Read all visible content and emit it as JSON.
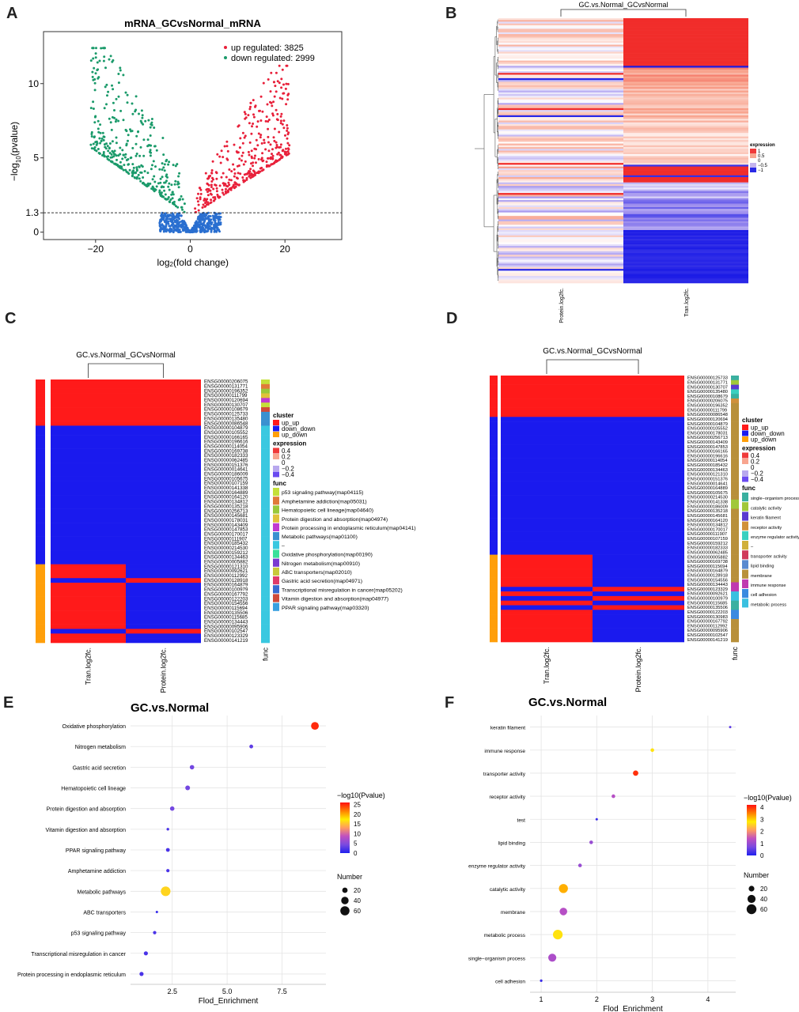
{
  "panel_letters": [
    "A",
    "B",
    "C",
    "D",
    "E",
    "F"
  ],
  "chart_data": [
    {
      "panel": "A",
      "type": "scatter",
      "title": "mRNA_GCvsNormal_mRNA",
      "xlabel": "log2(fold change)",
      "xlabel_main": "log",
      "xlabel_sub": "2",
      "xlabel_rest": "(fold change)",
      "ylabel_pre": "−log",
      "ylabel_sub": "10",
      "ylabel_rest": "(pvalue)",
      "xticks": [
        -20,
        0,
        20
      ],
      "yticks": [
        0,
        1.3,
        5,
        10
      ],
      "xlim": [
        -31,
        32
      ],
      "ylim": [
        -0.5,
        13.5
      ],
      "threshold": 1.3,
      "legend": [
        {
          "label": "up regulated: 3825",
          "color": "#e8203a"
        },
        {
          "label": "down regulated: 2999",
          "color": "#1a9a6a"
        }
      ],
      "colors": {
        "up": "#e8203a",
        "down": "#1a9a6a",
        "ns": "#2a6fd0"
      }
    },
    {
      "panel": "B",
      "type": "heatmap",
      "title": "GC.vs.Normal_GCvsNormal",
      "columns": [
        "Protein.log2fc.",
        "Tran.log2fc."
      ],
      "legend_title": "expression",
      "legend_labels": [
        "1",
        "0.5",
        "0",
        "−0.5",
        "−1"
      ],
      "legend_colors": [
        "#f03a3a",
        "#f8a58f",
        "#ffffff",
        "#c4b4ee",
        "#2a2ae6"
      ],
      "scale": [
        -1,
        1
      ]
    },
    {
      "panel": "C",
      "type": "heatmap",
      "title": "GC.vs.Normal_GCvsNormal",
      "columns": [
        "Tran.log2fc.",
        "Protein.log2fc."
      ],
      "func_label": "func",
      "genes": [
        "ENSG00000206075",
        "ENSG00000131771",
        "ENSG00000196352",
        "ENSG00000111799",
        "ENSG00000120694",
        "ENSG00000130707",
        "ENSG00000108679",
        "ENSG00000125733",
        "ENSG00000135480",
        "ENSG00000086548",
        "ENSG00000104879",
        "ENSG00000105552",
        "ENSG00000166165",
        "ENSG00000196616",
        "ENSG00000114054",
        "ENSG00000169738",
        "ENSG00000182333",
        "ENSG00000062485",
        "ENSG00000151376",
        "ENSG00000014641",
        "ENSG00000186009",
        "ENSG00000105675",
        "ENSG00000107159",
        "ENSG00000141338",
        "ENSG00000164889",
        "ENSG00000164120",
        "ENSG00000134812",
        "ENSG00000135218",
        "ENSG00000256713",
        "ENSG00000145681",
        "ENSG00000178031",
        "ENSG00000143409",
        "ENSG00000147853",
        "ENSG00000170017",
        "ENSG00000111907",
        "ENSG00000185432",
        "ENSG00000214530",
        "ENSG00000159212",
        "ENSG00000134463",
        "ENSG00000005882",
        "ENSG00000121310",
        "ENSG00000092621",
        "ENSG00000112992",
        "ENSG00000128918",
        "ENSG00000164879",
        "ENSG00000100979",
        "ENSG00000167792",
        "ENSG00000122203",
        "ENSG00000154556",
        "ENSG00000115694",
        "ENSG00000135506",
        "ENSG00000115685",
        "ENSG00000134443",
        "ENSG00000095906",
        "ENSG00000102547",
        "ENSG00000123329",
        "ENSG00000141219"
      ],
      "cluster_title": "cluster",
      "clusters": [
        {
          "label": "up_up",
          "color": "#ff1a1a"
        },
        {
          "label": "down_down",
          "color": "#1a1aee"
        },
        {
          "label": "up_down",
          "color": "#ff9f0a"
        }
      ],
      "expression_title": "expression",
      "expression_legend": [
        {
          "label": "0.4",
          "color": "#f03a3a"
        },
        {
          "label": "0.2",
          "color": "#f8a58f"
        },
        {
          "label": "0",
          "color": "#ffffff"
        },
        {
          "label": "−0.2",
          "color": "#b8a8ee"
        },
        {
          "label": "−0.4",
          "color": "#6a4af0"
        }
      ],
      "func_title": "func",
      "funcs": [
        {
          "label": "p53 signaling pathway(map04115)",
          "color": "#c5e03a"
        },
        {
          "label": "Amphetamine addiction(map05031)",
          "color": "#e07a3a"
        },
        {
          "label": "Hematopoietic cell lineage(map04640)",
          "color": "#9ac83a"
        },
        {
          "label": "Protein digestion and absorption(map04974)",
          "color": "#e0c23a"
        },
        {
          "label": "Protein processing in endoplasmic reticulum(map04141)",
          "color": "#c03ad0"
        },
        {
          "label": "Metabolic pathways(map01100)",
          "color": "#3a90d0"
        },
        {
          "label": "–",
          "color": "#3ac8e0"
        },
        {
          "label": "Oxidative phosphorylation(map00190)",
          "color": "#3ae09a"
        },
        {
          "label": "Nitrogen metabolism(map00910)",
          "color": "#7a3ad0"
        },
        {
          "label": "ABC transporters(map02010)",
          "color": "#c8c83a"
        },
        {
          "label": "Gastric acid secretion(map04971)",
          "color": "#e03a6a"
        },
        {
          "label": "Transcriptional misregulation in cancer(map05202)",
          "color": "#3a6ad0"
        },
        {
          "label": "Vitamin digestion and absorption(map04977)",
          "color": "#d04a3a"
        },
        {
          "label": "PPAR signaling pathway(map03320)",
          "color": "#3aa0e0"
        }
      ]
    },
    {
      "panel": "D",
      "type": "heatmap",
      "title": "GC.vs.Normal_GCvsNormal",
      "columns": [
        "Tran.log2fc.",
        "Protein.log2fc."
      ],
      "func_label": "func",
      "genes": [
        "ENSG00000125733",
        "ENSG00000131771",
        "ENSG00000130707",
        "ENSG00000135480",
        "ENSG00000108679",
        "ENSG00000206075",
        "ENSG00000196352",
        "ENSG00000111799",
        "ENSG00000086548",
        "ENSG00000120694",
        "ENSG00000104879",
        "ENSG00000105552",
        "ENSG00000178031",
        "ENSG00000256713",
        "ENSG00000143409",
        "ENSG00000147853",
        "ENSG00000166165",
        "ENSG00000196616",
        "ENSG00000114054",
        "ENSG00000185432",
        "ENSG00000134463",
        "ENSG00000121310",
        "ENSG00000151376",
        "ENSG00000014641",
        "ENSG00000164889",
        "ENSG00000105675",
        "ENSG00000214530",
        "ENSG00000141338",
        "ENSG00000186009",
        "ENSG00000135218",
        "ENSG00000145681",
        "ENSG00000164120",
        "ENSG00000134812",
        "ENSG00000170017",
        "ENSG00000111907",
        "ENSG00000107159",
        "ENSG00000159212",
        "ENSG00000182333",
        "ENSG00000062485",
        "ENSG00000005882",
        "ENSG00000169738",
        "ENSG00000115694",
        "ENSG00000164879",
        "ENSG00000128918",
        "ENSG00000154556",
        "ENSG00000134443",
        "ENSG00000123329",
        "ENSG00000092621",
        "ENSG00000100979",
        "ENSG00000115685",
        "ENSG00000135506",
        "ENSG00000122203",
        "ENSG00000130983",
        "ENSG00000167792",
        "ENSG00000112992",
        "ENSG00000095906",
        "ENSG00000102547",
        "ENSG00000141219"
      ],
      "cluster_title": "cluster",
      "clusters": [
        {
          "label": "up_up",
          "color": "#ff1a1a"
        },
        {
          "label": "down_down",
          "color": "#1a1aee"
        },
        {
          "label": "up_down",
          "color": "#ff9f0a"
        }
      ],
      "expression_title": "expression",
      "expression_legend": [
        {
          "label": "0.4",
          "color": "#f03a3a"
        },
        {
          "label": "0.2",
          "color": "#f8a58f"
        },
        {
          "label": "0",
          "color": "#ffffff"
        },
        {
          "label": "−0.2",
          "color": "#b8a8ee"
        },
        {
          "label": "−0.4",
          "color": "#6a4af0"
        }
      ],
      "func_title": "func",
      "funcs": [
        {
          "label": "single−organism process",
          "color": "#3ab0a0"
        },
        {
          "label": "catalytic activity",
          "color": "#a0c83a"
        },
        {
          "label": "keratin filament",
          "color": "#5a3ad0"
        },
        {
          "label": "receptor activity",
          "color": "#d0903a"
        },
        {
          "label": "enzyme regulator activity",
          "color": "#3ad0c0"
        },
        {
          "label": "–",
          "color": "#d0b03a"
        },
        {
          "label": "transporter activity",
          "color": "#d03a5a"
        },
        {
          "label": "lipid binding",
          "color": "#5a8ad0"
        },
        {
          "label": "membrane",
          "color": "#b8903a"
        },
        {
          "label": "immune response",
          "color": "#c03ab0"
        },
        {
          "label": "cell adhesion",
          "color": "#3a8ae0"
        },
        {
          "label": "metabolic process",
          "color": "#3ac0e0"
        }
      ]
    },
    {
      "panel": "E",
      "type": "scatter",
      "title": "GC.vs.Normal",
      "xlabel": "Flod_Enrichment",
      "xticks": [
        2.5,
        5.0,
        7.5
      ],
      "xtick_labels": [
        "2.5",
        "5.0",
        "7.5"
      ],
      "xlim": [
        0.6,
        9.5
      ],
      "categories": [
        "Oxidative phosphorylation",
        "Nitrogen metabolism",
        "Gastric acid secretion",
        "Hematopoietic cell lineage",
        "Protein digestion and absorption",
        "Vitamin digestion and absorption",
        "PPAR signaling pathway",
        "Amphetamine addiction",
        "Metabolic pathways",
        "ABC transporters",
        "p53 signaling pathway",
        "Transcriptional misregulation in cancer",
        "Protein processing in endoplasmic reticulum"
      ],
      "x": [
        9.0,
        6.1,
        3.4,
        3.2,
        2.5,
        2.3,
        2.3,
        2.3,
        2.2,
        1.8,
        1.7,
        1.3,
        1.1
      ],
      "neglog10p": [
        25,
        3,
        4,
        4,
        4,
        2,
        2,
        2,
        16,
        1,
        2,
        2,
        2
      ],
      "number": [
        42,
        10,
        14,
        16,
        14,
        5,
        10,
        8,
        66,
        4,
        8,
        12,
        12
      ],
      "color_legend_title": "−log10(Pvalue)",
      "color_ticks": [
        0,
        5,
        10,
        15,
        20,
        25
      ],
      "color_range": [
        0,
        26
      ],
      "size_legend_title": "Number",
      "size_ticks": [
        20,
        40,
        60
      ]
    },
    {
      "panel": "F",
      "type": "scatter",
      "title": "GC.vs.Normal",
      "xlabel": "Flod_Enrichment",
      "xticks": [
        1,
        2,
        3,
        4
      ],
      "xtick_labels": [
        "1",
        "2",
        "3",
        "4"
      ],
      "xlim": [
        0.8,
        4.5
      ],
      "categories": [
        "keratin filament",
        "immune response",
        "transporter activity",
        "receptor activity",
        "test",
        "lipid binding",
        "enzyme regulator activity",
        "catalytic activity",
        "membrane",
        "metabolic process",
        "single−organism process",
        "cell adhesion"
      ],
      "x": [
        4.4,
        3.0,
        2.7,
        2.3,
        2.0,
        1.9,
        1.7,
        1.4,
        1.4,
        1.3,
        1.2,
        1.0
      ],
      "neglog10p": [
        0.5,
        2.7,
        4.0,
        1.3,
        0.2,
        1.0,
        1.0,
        3.2,
        1.3,
        2.7,
        1.2,
        0.2
      ],
      "number": [
        2,
        8,
        18,
        8,
        2,
        8,
        8,
        50,
        36,
        58,
        40,
        4
      ],
      "color_legend_title": "−log10(Pvalue)",
      "color_ticks": [
        0,
        1,
        2,
        3,
        4
      ],
      "color_range": [
        0,
        4.2
      ],
      "size_legend_title": "Number",
      "size_ticks": [
        20,
        40,
        60
      ]
    }
  ]
}
